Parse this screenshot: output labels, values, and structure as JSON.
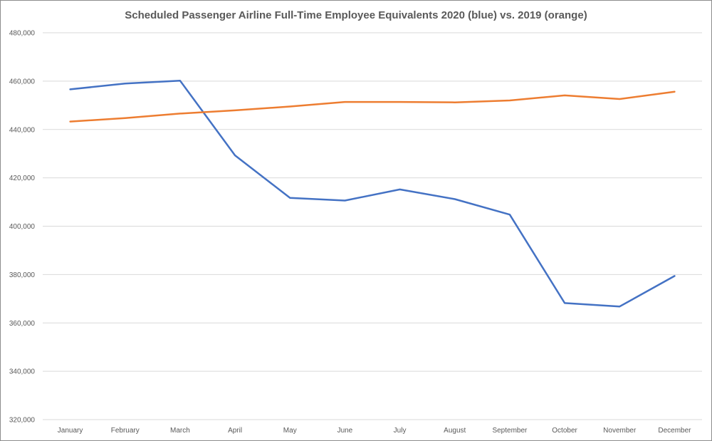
{
  "chart_data": {
    "type": "line",
    "title": "Scheduled Passenger Airline Full-Time Employee Equivalents 2020 (blue) vs. 2019 (orange)",
    "xlabel": "",
    "ylabel": "",
    "categories": [
      "January",
      "February",
      "March",
      "April",
      "May",
      "June",
      "July",
      "August",
      "September",
      "October",
      "November",
      "December"
    ],
    "ylim": [
      320000,
      480000
    ],
    "yticks": [
      320000,
      340000,
      360000,
      380000,
      400000,
      420000,
      440000,
      460000,
      480000
    ],
    "ytick_labels": [
      "320,000",
      "340,000",
      "360,000",
      "380,000",
      "400,000",
      "420,000",
      "440,000",
      "460,000",
      "480,000"
    ],
    "grid": true,
    "legend": "none",
    "series": [
      {
        "color": "#4472c4",
        "values": [
          456600,
          459000,
          460200,
          429300,
          411700,
          410600,
          415200,
          411200,
          404800,
          368200,
          366800,
          379400
        ]
      },
      {
        "color": "#ed7d31",
        "values": [
          443300,
          444700,
          446600,
          447900,
          449500,
          451400,
          451400,
          451200,
          452000,
          454100,
          452600,
          455600
        ]
      }
    ]
  }
}
